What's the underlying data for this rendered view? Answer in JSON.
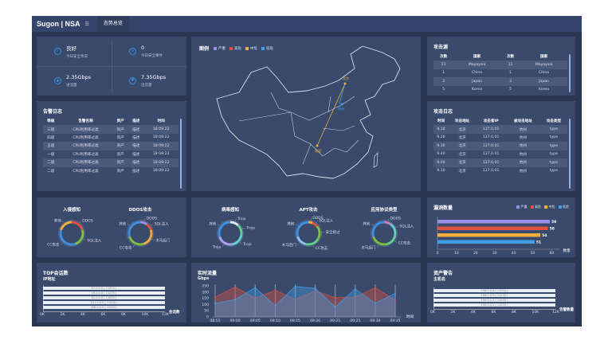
{
  "header": {
    "logo": "Sugon | NSA",
    "menu_icon": "menu-icon",
    "nav": "态势总览"
  },
  "stats": [
    {
      "value": "良好",
      "label": "今日安全状况",
      "icon": "shield-check-icon"
    },
    {
      "value": "0",
      "label": "今日安全事件",
      "icon": "document-icon"
    },
    {
      "value": "2.35Gbps",
      "label": "进流量",
      "icon": "arrow-up-circle-icon"
    },
    {
      "value": "7.35Gbps",
      "label": "出流量",
      "icon": "arrow-down-circle-icon"
    }
  ],
  "alarm_log": {
    "title": "告警日志",
    "columns": [
      "等级",
      "告警名称",
      "资产",
      "描述",
      "时间"
    ],
    "rows": [
      [
        "三级",
        "CPU利用率过高",
        "资产",
        "描述",
        "18:09:22"
      ],
      [
        "四级",
        "CPU利用率过高",
        "资产",
        "描述",
        "18:09:22"
      ],
      [
        "五级",
        "CPU利用率过高",
        "资产",
        "描述",
        "18:09:22"
      ],
      [
        "一级",
        "CPU利用率过高",
        "资产",
        "描述",
        "18:09:22"
      ],
      [
        "二级",
        "CPU利用率过高",
        "资产",
        "描述",
        "18:09:22"
      ],
      [
        "二级",
        "CPU利用率过高",
        "资产",
        "描述",
        "18:09:22"
      ]
    ]
  },
  "map": {
    "legend_title": "图例",
    "legend": [
      {
        "name": "严重",
        "color": "#9b8ee8"
      },
      {
        "name": "高危",
        "color": "#e0513f"
      },
      {
        "name": "中危",
        "color": "#f0ad3c"
      },
      {
        "name": "低危",
        "color": "#3fa0e8"
      }
    ],
    "cities": [
      "北京",
      "郑州",
      "贵阳"
    ]
  },
  "attack_source": {
    "title": "攻击源",
    "columns": [
      "次数",
      "国家",
      "次数",
      "国家"
    ],
    "rows": [
      [
        "11",
        "Mayaysia",
        "11",
        "Mayaysia"
      ],
      [
        "1",
        "China",
        "1",
        "China"
      ],
      [
        "3",
        "Japan",
        "3",
        "Japan"
      ],
      [
        "5",
        "Korea",
        "5",
        "Korea"
      ]
    ]
  },
  "attack_log": {
    "title": "攻击日志",
    "columns": [
      "时间",
      "攻击地址",
      "攻击者IP",
      "被攻击地址",
      "攻击类型"
    ],
    "rows": [
      [
        "9.10",
        "北京",
        "127.0.01",
        "杭州",
        "type"
      ],
      [
        "9.20",
        "北京",
        "127.0.01",
        "杭州",
        "type"
      ],
      [
        "9.30",
        "北京",
        "127.0.01",
        "杭州",
        "type"
      ],
      [
        "9.40",
        "北京",
        "127.0.01",
        "杭州",
        "type"
      ],
      [
        "9.00",
        "北京",
        "127.0.01",
        "杭州",
        "type"
      ],
      [
        "9.10",
        "北京",
        "127.0.01",
        "杭州",
        "type"
      ]
    ]
  },
  "donuts": [
    {
      "title": "入侵感知",
      "segments": [
        {
          "label": "DDOS",
          "value": 20,
          "color": "#e0513f"
        },
        {
          "label": "SQL注入",
          "value": 25,
          "color": "#7fbf3f"
        },
        {
          "label": "CC攻击",
          "value": 35,
          "color": "#3f8ee0"
        },
        {
          "label": "其他",
          "value": 20,
          "color": "#f0ad3c"
        }
      ]
    },
    {
      "title": "DDOS攻击",
      "segments": [
        {
          "label": "DDOS",
          "value": 10,
          "color": "#9b8ee8"
        },
        {
          "label": "SQL注入",
          "value": 10,
          "color": "#e0513f"
        },
        {
          "label": "木马后门",
          "value": 25,
          "color": "#f0ad3c"
        },
        {
          "label": "CC攻击",
          "value": 25,
          "color": "#7fbf3f"
        },
        {
          "label": "其他",
          "value": 30,
          "color": "#3f8ee0"
        }
      ]
    },
    {
      "title": "病毒感知",
      "segments": [
        {
          "label": "Troja",
          "value": 12,
          "color": "#dfe6f2"
        },
        {
          "label": "Troja",
          "value": 15,
          "color": "#5fcf8f"
        },
        {
          "label": "Troja",
          "value": 20,
          "color": "#5fcfcf"
        },
        {
          "label": "Troja",
          "value": 23,
          "color": "#a99ef0"
        },
        {
          "label": "其他",
          "value": 30,
          "color": "#3f8ee0"
        }
      ]
    },
    {
      "title": "APT攻击",
      "segments": [
        {
          "label": "DDOS",
          "value": 6,
          "color": "#f0ad3c"
        },
        {
          "label": "SQL注入",
          "value": 8,
          "color": "#e0513f"
        },
        {
          "label": "安全绕过",
          "value": 20,
          "color": "#7fbf3f"
        },
        {
          "label": "CC攻击",
          "value": 20,
          "color": "#5fcf8f"
        },
        {
          "label": "木马后门",
          "value": 16,
          "color": "#8fc3f0"
        },
        {
          "label": "其他",
          "value": 30,
          "color": "#3f8ee0"
        }
      ]
    },
    {
      "title": "应用协议类型",
      "segments": [
        {
          "label": "DDOS",
          "value": 10,
          "color": "#c07fc0"
        },
        {
          "label": "SQL注入",
          "value": 15,
          "color": "#5fcfcf"
        },
        {
          "label": "CC攻击",
          "value": 20,
          "color": "#5fcf8f"
        },
        {
          "label": "木马后门",
          "value": 25,
          "color": "#7fbf3f"
        },
        {
          "label": "其他",
          "value": 30,
          "color": "#3f8ee0"
        }
      ]
    }
  ],
  "vuln": {
    "title": "漏洞数量",
    "xlabel": "数量",
    "ticks": [
      "0",
      "10",
      "20",
      "30",
      "40",
      "50",
      "60"
    ],
    "max": 64,
    "bars": [
      {
        "name": "严重",
        "value": 59,
        "color": "#9b8ee8"
      },
      {
        "name": "高危",
        "value": 58,
        "color": "#e0513f"
      },
      {
        "name": "中危",
        "value": 54,
        "color": "#f0ad3c"
      },
      {
        "name": "低危",
        "value": 51,
        "color": "#3fa0e8"
      }
    ]
  },
  "top_sessions": {
    "title": "TOP会话数",
    "ylabel": "IP地址",
    "xlabel": "会话数",
    "ticks": [
      "0K",
      "2K",
      "4K",
      "6K",
      "8K",
      "10K",
      "12K"
    ],
    "bars": [
      "97.0.0.0 ( 11920 )",
      "49.0.0.0 ( 11235 )",
      "62.0.0.0 ( 11000 )",
      "191.0.0.0 ( 11000 )",
      "168.0.0.0 ( 10009 )"
    ]
  },
  "realtime": {
    "title": "实时流量",
    "ylabel": "Gbps",
    "xlabel": "时间",
    "yticks": [
      "250",
      "200",
      "150",
      "100",
      "50",
      "0"
    ],
    "x": [
      "08:55",
      "09:00",
      "09:05",
      "09:10",
      "09:15",
      "09:20",
      "09:25",
      "09:25",
      "09:30",
      "09:35"
    ],
    "series": [
      {
        "values": [
          160,
          240,
          150,
          215,
          140,
          210,
          155,
          160,
          235,
          135
        ],
        "color": "#e0513f"
      },
      {
        "values": [
          110,
          140,
          235,
          90,
          245,
          230,
          80,
          225,
          110,
          190
        ],
        "color": "#3fa0e8"
      }
    ]
  },
  "asset_alarm": {
    "title": "资产警告",
    "ylabel": "主机名",
    "xlabel": "告警数量",
    "ticks": [
      "0K",
      "2K",
      "4K",
      "6K",
      "8K",
      "10K",
      "12K"
    ],
    "bars": [
      "196.0.0.4 ( 11920 )",
      "196.0.0.3 ( 11235 )",
      "196.0.0.2 ( 11000 )",
      "196.0.0.2 ( 11039 )"
    ]
  }
}
